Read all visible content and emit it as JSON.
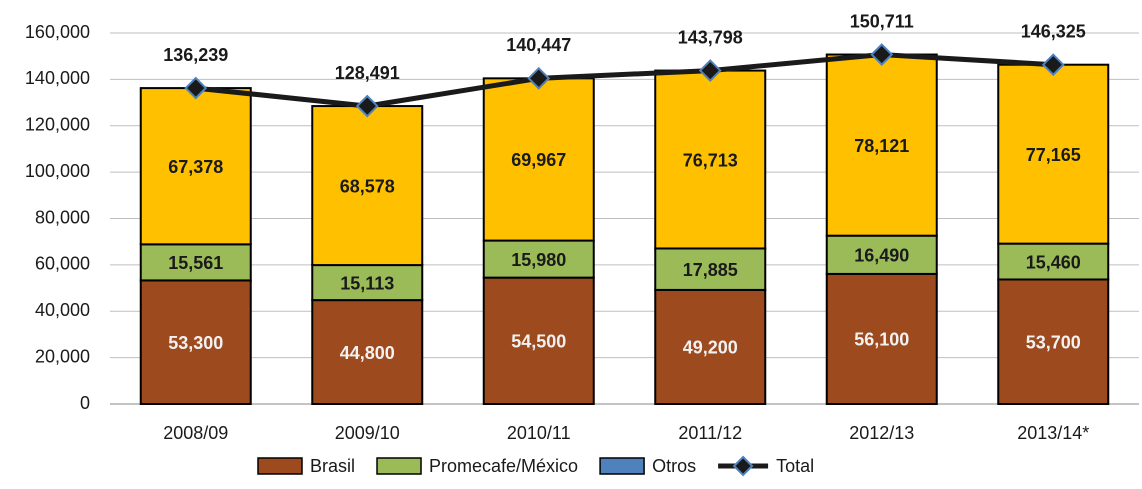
{
  "chart_data": {
    "type": "bar",
    "stacked": true,
    "categories": [
      "2008/09",
      "2009/10",
      "2010/11",
      "2011/12",
      "2012/13",
      "2013/14*"
    ],
    "series": [
      {
        "name": "Brasil",
        "color": "#9c4a1e",
        "values": [
          53300,
          44800,
          54500,
          49200,
          56100,
          53700
        ],
        "value_labels": [
          "53,300",
          "44,800",
          "54,500",
          "49,200",
          "56,100",
          "53,700"
        ]
      },
      {
        "name": "Promecafe/México",
        "color": "#9bbb59",
        "values": [
          15561,
          15113,
          15980,
          17885,
          16490,
          15460
        ],
        "value_labels": [
          "15,561",
          "15,113",
          "15,980",
          "17,885",
          "16,490",
          "15,460"
        ]
      },
      {
        "name": "Otros",
        "color": "#ffc000",
        "legend_color": "#4f81bd",
        "values": [
          67378,
          68578,
          69967,
          76713,
          78121,
          77165
        ],
        "value_labels": [
          "67,378",
          "68,578",
          "69,967",
          "76,713",
          "78,121",
          "77,165"
        ]
      },
      {
        "name": "Total",
        "type": "line",
        "color": "#1a1a1a",
        "marker_color": "#4f81bd",
        "values": [
          136239,
          128491,
          140447,
          143798,
          150711,
          146325
        ],
        "value_labels": [
          "136,239",
          "128,491",
          "140,447",
          "143,798",
          "150,711",
          "146,325"
        ]
      }
    ],
    "ylim": [
      0,
      160000
    ],
    "yticks": [
      0,
      {
        "value": 20000,
        "label": "20,000"
      },
      {
        "value": 40000,
        "label": "40,000"
      },
      {
        "value": 60000,
        "label": "60,000"
      },
      {
        "value": 80000,
        "label": "80,000"
      },
      {
        "value": 100000,
        "label": "100,000"
      },
      {
        "value": 120000,
        "label": "120,000"
      },
      {
        "value": 140000,
        "label": "140,000"
      },
      {
        "value": 160000,
        "label": "160,000"
      }
    ],
    "grid": true,
    "legend": "bottom"
  }
}
